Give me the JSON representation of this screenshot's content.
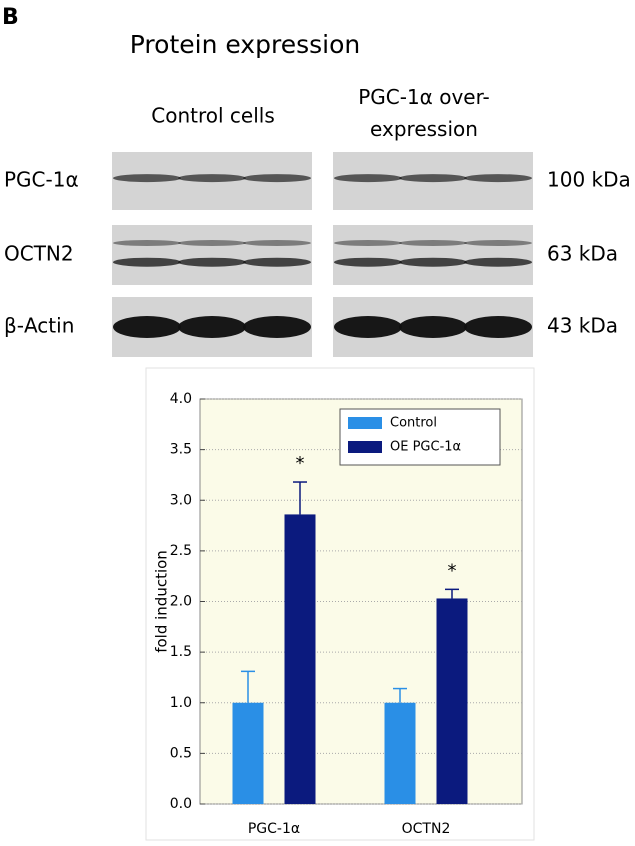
{
  "panel_label": "B",
  "heading": "Protein expression",
  "blot": {
    "columns": [
      "Control cells",
      "PGC-1α over-\nexpression"
    ],
    "rows": [
      {
        "protein": "PGC-1α",
        "size": "100 kDa"
      },
      {
        "protein": "OCTN2",
        "size": "63 kDa"
      },
      {
        "protein": "β-Actin",
        "size": "43 kDa"
      }
    ]
  },
  "chart_data": {
    "type": "bar",
    "y_label": "fold induction",
    "categories": [
      "PGC-1α",
      "OCTN2"
    ],
    "series": [
      {
        "name": "Control",
        "color": "#2a8fe6",
        "values": [
          1.0,
          1.0
        ],
        "errors": [
          0.31,
          0.14
        ]
      },
      {
        "name": "OE PGC-1α",
        "color": "#0b1a7e",
        "values": [
          2.86,
          2.03
        ],
        "errors": [
          0.32,
          0.09
        ]
      }
    ],
    "annotations": [
      "*",
      "*"
    ],
    "ylim": [
      0,
      4
    ],
    "yticks": [
      {
        "value": 0,
        "label": "0.0"
      },
      {
        "value": 0.5,
        "label": "0.5"
      },
      {
        "value": 1,
        "label": "1.0"
      },
      {
        "value": 1.5,
        "label": "1.5"
      },
      {
        "value": 2,
        "label": "2.0"
      },
      {
        "value": 2.5,
        "label": "2.5"
      },
      {
        "value": 3,
        "label": "3.0"
      },
      {
        "value": 3.5,
        "label": "3.5"
      },
      {
        "value": 4,
        "label": "4.0"
      }
    ],
    "grid": true,
    "legend": "upper right",
    "background": "#fbfbe8"
  }
}
